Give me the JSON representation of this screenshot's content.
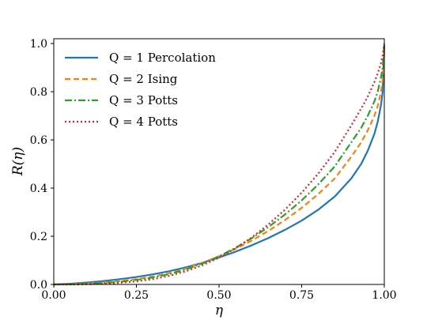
{
  "chart_data": {
    "type": "line",
    "title": "",
    "xlabel": "η",
    "ylabel": "R(η)",
    "xlim": [
      0.0,
      1.0
    ],
    "ylim": [
      0.0,
      1.02
    ],
    "x_ticks": [
      "0.00",
      "0.25",
      "0.50",
      "0.75",
      "1.00"
    ],
    "y_ticks": [
      "0.0",
      "0.2",
      "0.4",
      "0.6",
      "0.8",
      "1.0"
    ],
    "grid": false,
    "legend_position": "top-left",
    "x": [
      0.0,
      0.05,
      0.1,
      0.15,
      0.2,
      0.25,
      0.3,
      0.35,
      0.4,
      0.45,
      0.5,
      0.55,
      0.6,
      0.65,
      0.7,
      0.75,
      0.8,
      0.85,
      0.9,
      0.93,
      0.95,
      0.97,
      0.98,
      0.99,
      0.995,
      1.0
    ],
    "series": [
      {
        "name": "Q = 1 Percolation",
        "color": "#1f77b4",
        "dash": "solid",
        "values": [
          0.0,
          0.003,
          0.008,
          0.014,
          0.022,
          0.031,
          0.042,
          0.055,
          0.071,
          0.09,
          0.112,
          0.136,
          0.163,
          0.193,
          0.227,
          0.265,
          0.31,
          0.365,
          0.44,
          0.5,
          0.555,
          0.625,
          0.675,
          0.745,
          0.8,
          0.99
        ]
      },
      {
        "name": "Q = 2 Ising",
        "color": "#ff7f0e",
        "dash": "dashed",
        "values": [
          0.0,
          0.001,
          0.004,
          0.008,
          0.014,
          0.022,
          0.033,
          0.047,
          0.066,
          0.09,
          0.117,
          0.148,
          0.183,
          0.223,
          0.268,
          0.318,
          0.375,
          0.44,
          0.53,
          0.59,
          0.64,
          0.7,
          0.74,
          0.8,
          0.85,
          0.97
        ]
      },
      {
        "name": "Q = 3 Potts",
        "color": "#2ca02c",
        "dash": "dashdot",
        "values": [
          0.0,
          0.001,
          0.003,
          0.006,
          0.011,
          0.019,
          0.029,
          0.043,
          0.062,
          0.087,
          0.117,
          0.152,
          0.193,
          0.239,
          0.291,
          0.349,
          0.415,
          0.49,
          0.59,
          0.65,
          0.7,
          0.76,
          0.8,
          0.86,
          0.9,
          1.0
        ]
      },
      {
        "name": "Q = 4 Potts",
        "color": "#d62728",
        "dash": "dotted",
        "values": [
          0.0,
          0.0,
          0.001,
          0.003,
          0.007,
          0.013,
          0.022,
          0.036,
          0.055,
          0.08,
          0.111,
          0.15,
          0.196,
          0.25,
          0.311,
          0.381,
          0.46,
          0.55,
          0.66,
          0.73,
          0.78,
          0.84,
          0.875,
          0.92,
          0.95,
          1.0
        ]
      }
    ]
  }
}
